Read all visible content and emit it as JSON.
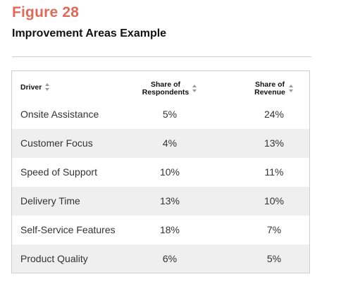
{
  "figure": {
    "label": "Figure 28",
    "title": "Improvement Areas Example"
  },
  "table": {
    "headers": {
      "driver": "Driver",
      "respondents_line1": "Share of",
      "respondents_line2": "Respondents",
      "revenue_line1": "Share of",
      "revenue_line2": "Revenue"
    },
    "rows": [
      {
        "driver": "Onsite Assistance",
        "respondents": "5%",
        "revenue": "24%"
      },
      {
        "driver": "Customer Focus",
        "respondents": "4%",
        "revenue": "13%"
      },
      {
        "driver": "Speed of Support",
        "respondents": "10%",
        "revenue": "11%"
      },
      {
        "driver": "Delivery Time",
        "respondents": "13%",
        "revenue": "10%"
      },
      {
        "driver": "Self-Service Features",
        "respondents": "18%",
        "revenue": "7%"
      },
      {
        "driver": "Product Quality",
        "respondents": "6%",
        "revenue": "5%"
      }
    ]
  },
  "colors": {
    "figure_label": "#e06a5a",
    "row_shade": "#efefef",
    "border": "#cfcfcf"
  },
  "icons": {
    "sort": "sort-arrows-icon"
  }
}
